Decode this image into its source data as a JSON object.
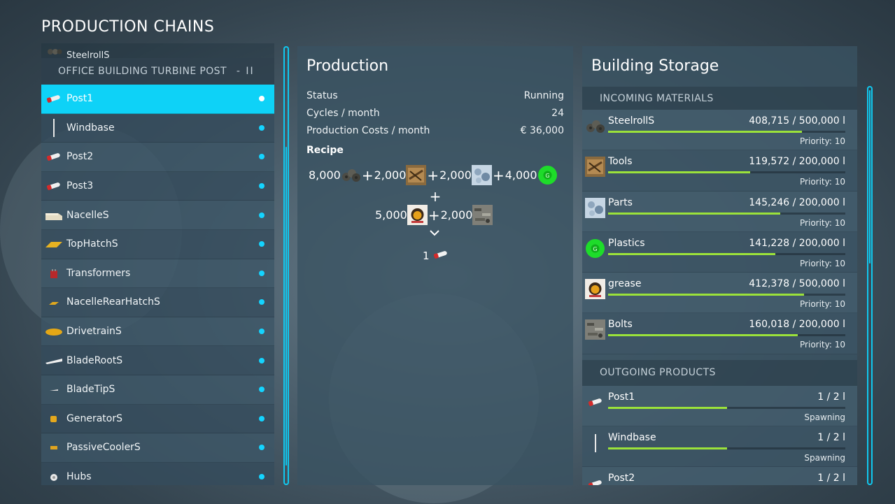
{
  "page_title": "PRODUCTION CHAINS",
  "left_list": {
    "cut_item": "SteelrollS",
    "group_header": "OFFICE BUILDING TURBINE POST",
    "group_pager": "- II",
    "items": [
      {
        "label": "Post1",
        "icon": "post-icon",
        "selected": true
      },
      {
        "label": "Windbase",
        "icon": "windbase-icon"
      },
      {
        "label": "Post2",
        "icon": "post-icon"
      },
      {
        "label": "Post3",
        "icon": "post-icon"
      },
      {
        "label": "NacelleS",
        "icon": "nacelle-icon"
      },
      {
        "label": "TopHatchS",
        "icon": "top-hatch-icon"
      },
      {
        "label": "Transformers",
        "icon": "transformer-icon"
      },
      {
        "label": "NacelleRearHatchS",
        "icon": "rear-hatch-icon"
      },
      {
        "label": "DrivetrainS",
        "icon": "drivetrain-icon"
      },
      {
        "label": "BladeRootS",
        "icon": "blade-root-icon"
      },
      {
        "label": "BladeTipS",
        "icon": "blade-tip-icon"
      },
      {
        "label": "GeneratorS",
        "icon": "generator-icon"
      },
      {
        "label": "PassiveCoolerS",
        "icon": "passive-cooler-icon"
      },
      {
        "label": "Hubs",
        "icon": "hub-icon"
      }
    ]
  },
  "production": {
    "title": "Production",
    "stats": [
      {
        "label": "Status",
        "value": "Running"
      },
      {
        "label": "Cycles / month",
        "value": "24"
      },
      {
        "label": "Production Costs / month",
        "value": "€ 36,000"
      }
    ],
    "recipe_label": "Recipe",
    "recipe_line1": [
      {
        "amount": "8,000",
        "icon": "steelrolls-icon"
      },
      {
        "amount": "2,000",
        "icon": "tools-icon"
      },
      {
        "amount": "2,000",
        "icon": "parts-icon"
      },
      {
        "amount": "4,000",
        "icon": "plastics-icon"
      }
    ],
    "recipe_line2": [
      {
        "amount": "5,000",
        "icon": "grease-icon"
      },
      {
        "amount": "2,000",
        "icon": "bolts-icon"
      }
    ],
    "plus_symbol": "+",
    "output_amount": "1",
    "output_icon": "post-icon"
  },
  "storage": {
    "title": "Building Storage",
    "incoming_header": "INCOMING MATERIALS",
    "incoming": [
      {
        "name": "SteelrollS",
        "amount": "408,715  / 500,000 l",
        "fill": 0.817,
        "sub": "Priority: 10",
        "icon": "steelrolls-icon"
      },
      {
        "name": "Tools",
        "amount": "119,572  / 200,000 l",
        "fill": 0.598,
        "sub": "Priority: 10",
        "icon": "tools-icon"
      },
      {
        "name": "Parts",
        "amount": "145,246  / 200,000 l",
        "fill": 0.726,
        "sub": "Priority: 10",
        "icon": "parts-icon"
      },
      {
        "name": "Plastics",
        "amount": "141,228  / 200,000 l",
        "fill": 0.706,
        "sub": "Priority: 10",
        "icon": "plastics-icon"
      },
      {
        "name": "grease",
        "amount": "412,378  / 500,000 l",
        "fill": 0.825,
        "sub": "Priority: 10",
        "icon": "grease-icon"
      },
      {
        "name": "Bolts",
        "amount": "160,018  / 200,000 l",
        "fill": 0.8,
        "sub": "Priority: 10",
        "icon": "bolts-icon"
      }
    ],
    "outgoing_header": "OUTGOING PRODUCTS",
    "outgoing": [
      {
        "name": "Post1",
        "amount": "1 / 2 l",
        "fill": 0.5,
        "sub": "Spawning",
        "icon": "post-icon"
      },
      {
        "name": "Windbase",
        "amount": "1 / 2 l",
        "fill": 0.5,
        "sub": "Spawning",
        "icon": "windbase-icon"
      },
      {
        "name": "Post2",
        "amount": "1 / 2 l",
        "fill": 0.5,
        "sub": "",
        "icon": "post-icon"
      }
    ]
  },
  "colors": {
    "accent": "#0ed2f7",
    "bar_fill": "#9be23a",
    "status_dot": "#14d4ff"
  }
}
